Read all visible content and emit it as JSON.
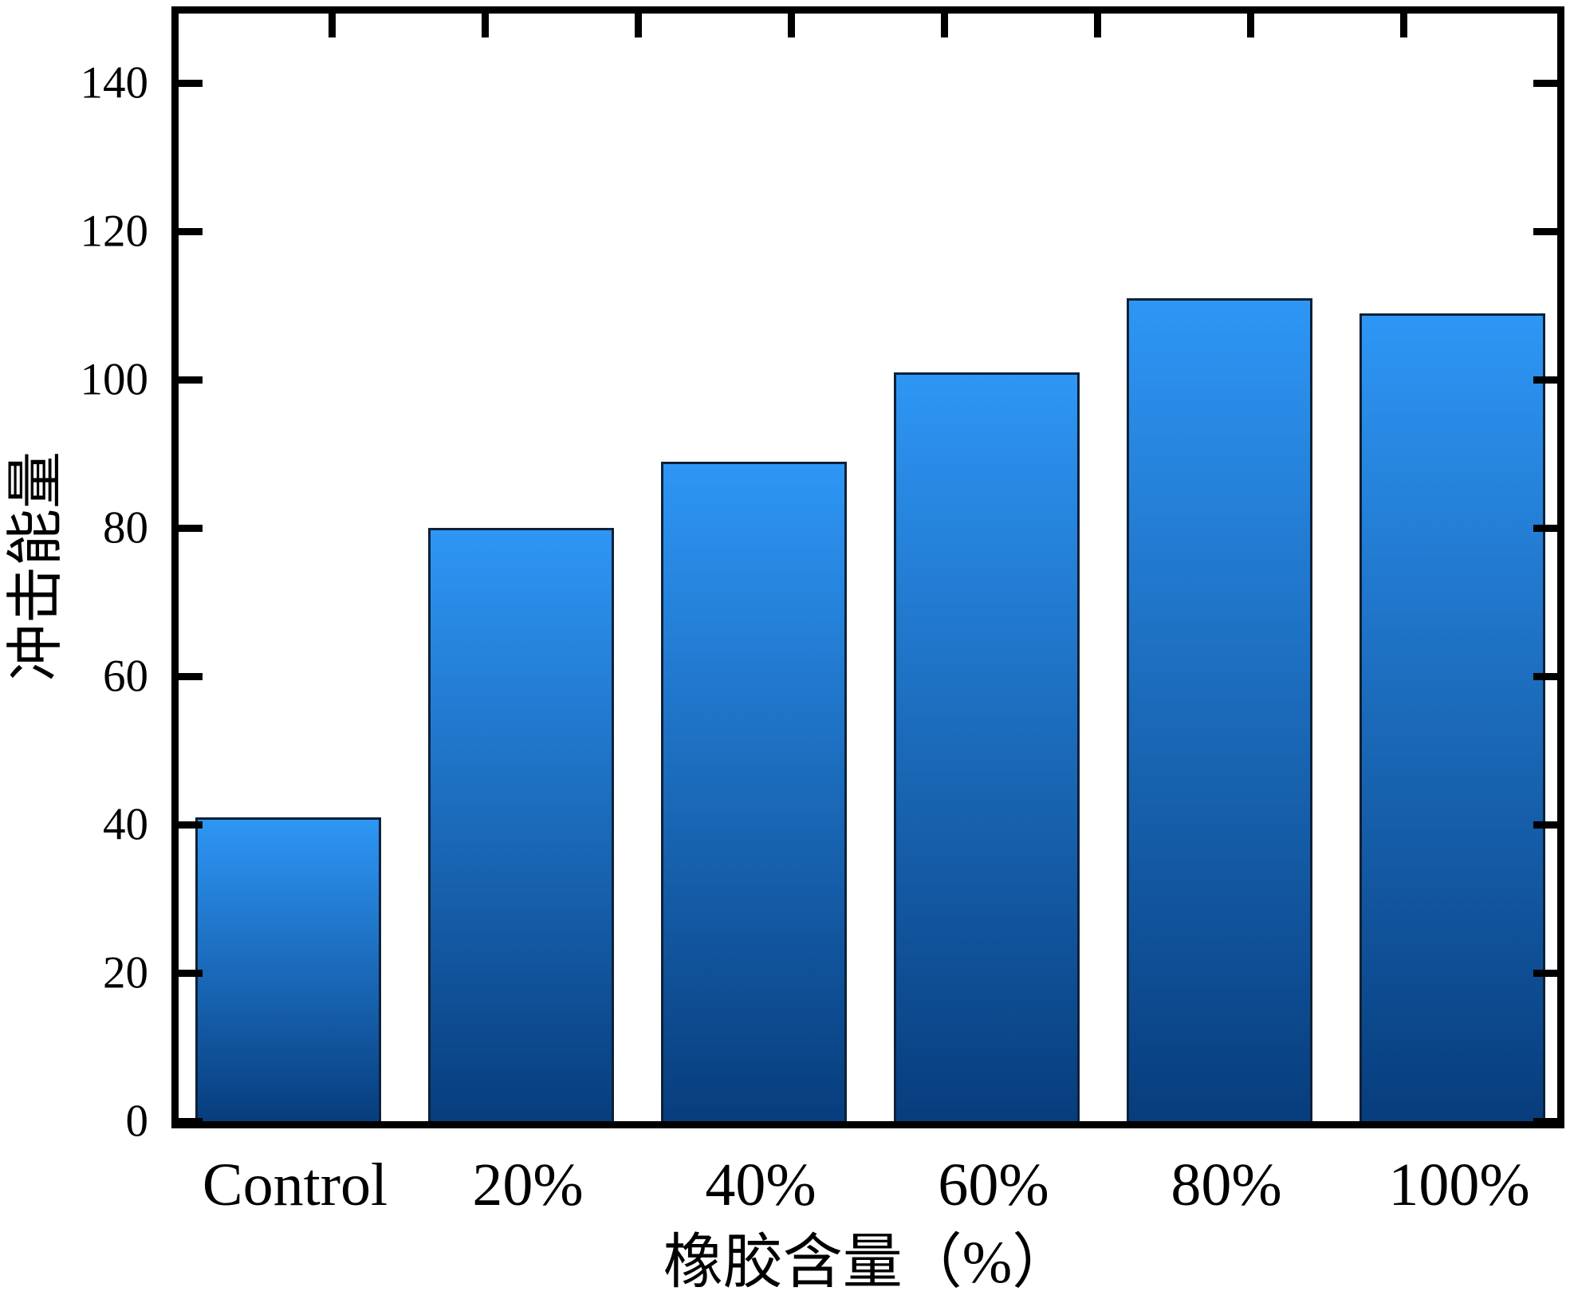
{
  "chart_data": {
    "type": "bar",
    "categories": [
      "Control",
      "20%",
      "40%",
      "60%",
      "80%",
      "100%"
    ],
    "values": [
      41,
      80,
      89,
      101,
      111,
      109
    ],
    "title": "",
    "xlabel": "橡胶含量（%）",
    "ylabel": "冲击能量",
    "ylim": [
      0,
      149.4
    ],
    "yticks": [
      0,
      20,
      40,
      60,
      80,
      100,
      120,
      140
    ],
    "grid": false,
    "legend": null,
    "tick_direction": "in",
    "top_axis_tick_count": 8,
    "colors": {
      "bar_gradient_top": "#2E96F5",
      "bar_gradient_bottom": "#073D7D",
      "bar_border": "#0D2137",
      "axis": "#000000",
      "background": "#FFFFFF",
      "text": "#000000"
    }
  }
}
